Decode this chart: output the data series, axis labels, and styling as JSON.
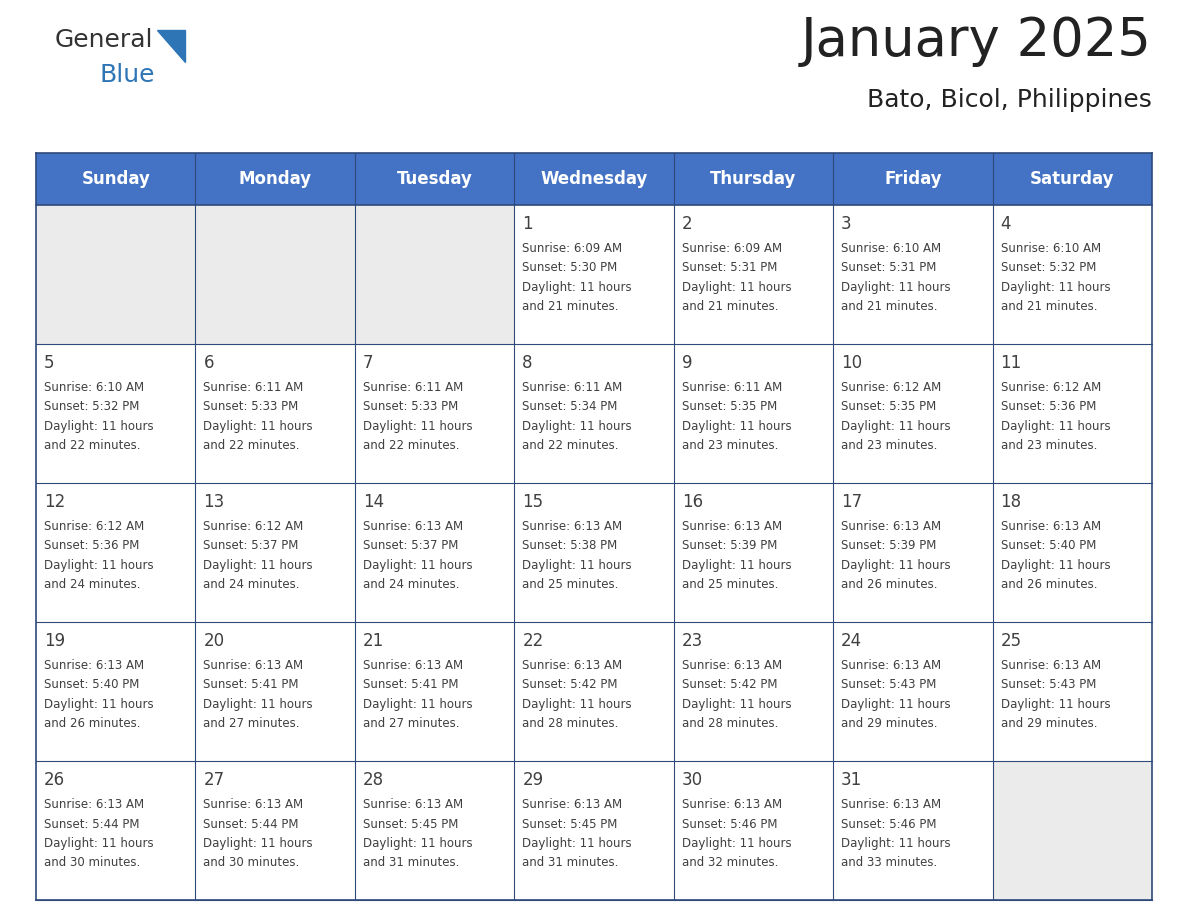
{
  "title": "January 2025",
  "subtitle": "Bato, Bicol, Philippines",
  "header_bg": "#4472C4",
  "header_text_color": "#FFFFFF",
  "day_names": [
    "Sunday",
    "Monday",
    "Tuesday",
    "Wednesday",
    "Thursday",
    "Friday",
    "Saturday"
  ],
  "weeks": [
    [
      {
        "day": "",
        "sunrise": "",
        "sunset": "",
        "daylight": ""
      },
      {
        "day": "",
        "sunrise": "",
        "sunset": "",
        "daylight": ""
      },
      {
        "day": "",
        "sunrise": "",
        "sunset": "",
        "daylight": ""
      },
      {
        "day": "1",
        "sunrise": "6:09 AM",
        "sunset": "5:30 PM",
        "daylight_line1": "Daylight: 11 hours",
        "daylight_line2": "and 21 minutes."
      },
      {
        "day": "2",
        "sunrise": "6:09 AM",
        "sunset": "5:31 PM",
        "daylight_line1": "Daylight: 11 hours",
        "daylight_line2": "and 21 minutes."
      },
      {
        "day": "3",
        "sunrise": "6:10 AM",
        "sunset": "5:31 PM",
        "daylight_line1": "Daylight: 11 hours",
        "daylight_line2": "and 21 minutes."
      },
      {
        "day": "4",
        "sunrise": "6:10 AM",
        "sunset": "5:32 PM",
        "daylight_line1": "Daylight: 11 hours",
        "daylight_line2": "and 21 minutes."
      }
    ],
    [
      {
        "day": "5",
        "sunrise": "6:10 AM",
        "sunset": "5:32 PM",
        "daylight_line1": "Daylight: 11 hours",
        "daylight_line2": "and 22 minutes."
      },
      {
        "day": "6",
        "sunrise": "6:11 AM",
        "sunset": "5:33 PM",
        "daylight_line1": "Daylight: 11 hours",
        "daylight_line2": "and 22 minutes."
      },
      {
        "day": "7",
        "sunrise": "6:11 AM",
        "sunset": "5:33 PM",
        "daylight_line1": "Daylight: 11 hours",
        "daylight_line2": "and 22 minutes."
      },
      {
        "day": "8",
        "sunrise": "6:11 AM",
        "sunset": "5:34 PM",
        "daylight_line1": "Daylight: 11 hours",
        "daylight_line2": "and 22 minutes."
      },
      {
        "day": "9",
        "sunrise": "6:11 AM",
        "sunset": "5:35 PM",
        "daylight_line1": "Daylight: 11 hours",
        "daylight_line2": "and 23 minutes."
      },
      {
        "day": "10",
        "sunrise": "6:12 AM",
        "sunset": "5:35 PM",
        "daylight_line1": "Daylight: 11 hours",
        "daylight_line2": "and 23 minutes."
      },
      {
        "day": "11",
        "sunrise": "6:12 AM",
        "sunset": "5:36 PM",
        "daylight_line1": "Daylight: 11 hours",
        "daylight_line2": "and 23 minutes."
      }
    ],
    [
      {
        "day": "12",
        "sunrise": "6:12 AM",
        "sunset": "5:36 PM",
        "daylight_line1": "Daylight: 11 hours",
        "daylight_line2": "and 24 minutes."
      },
      {
        "day": "13",
        "sunrise": "6:12 AM",
        "sunset": "5:37 PM",
        "daylight_line1": "Daylight: 11 hours",
        "daylight_line2": "and 24 minutes."
      },
      {
        "day": "14",
        "sunrise": "6:13 AM",
        "sunset": "5:37 PM",
        "daylight_line1": "Daylight: 11 hours",
        "daylight_line2": "and 24 minutes."
      },
      {
        "day": "15",
        "sunrise": "6:13 AM",
        "sunset": "5:38 PM",
        "daylight_line1": "Daylight: 11 hours",
        "daylight_line2": "and 25 minutes."
      },
      {
        "day": "16",
        "sunrise": "6:13 AM",
        "sunset": "5:39 PM",
        "daylight_line1": "Daylight: 11 hours",
        "daylight_line2": "and 25 minutes."
      },
      {
        "day": "17",
        "sunrise": "6:13 AM",
        "sunset": "5:39 PM",
        "daylight_line1": "Daylight: 11 hours",
        "daylight_line2": "and 26 minutes."
      },
      {
        "day": "18",
        "sunrise": "6:13 AM",
        "sunset": "5:40 PM",
        "daylight_line1": "Daylight: 11 hours",
        "daylight_line2": "and 26 minutes."
      }
    ],
    [
      {
        "day": "19",
        "sunrise": "6:13 AM",
        "sunset": "5:40 PM",
        "daylight_line1": "Daylight: 11 hours",
        "daylight_line2": "and 26 minutes."
      },
      {
        "day": "20",
        "sunrise": "6:13 AM",
        "sunset": "5:41 PM",
        "daylight_line1": "Daylight: 11 hours",
        "daylight_line2": "and 27 minutes."
      },
      {
        "day": "21",
        "sunrise": "6:13 AM",
        "sunset": "5:41 PM",
        "daylight_line1": "Daylight: 11 hours",
        "daylight_line2": "and 27 minutes."
      },
      {
        "day": "22",
        "sunrise": "6:13 AM",
        "sunset": "5:42 PM",
        "daylight_line1": "Daylight: 11 hours",
        "daylight_line2": "and 28 minutes."
      },
      {
        "day": "23",
        "sunrise": "6:13 AM",
        "sunset": "5:42 PM",
        "daylight_line1": "Daylight: 11 hours",
        "daylight_line2": "and 28 minutes."
      },
      {
        "day": "24",
        "sunrise": "6:13 AM",
        "sunset": "5:43 PM",
        "daylight_line1": "Daylight: 11 hours",
        "daylight_line2": "and 29 minutes."
      },
      {
        "day": "25",
        "sunrise": "6:13 AM",
        "sunset": "5:43 PM",
        "daylight_line1": "Daylight: 11 hours",
        "daylight_line2": "and 29 minutes."
      }
    ],
    [
      {
        "day": "26",
        "sunrise": "6:13 AM",
        "sunset": "5:44 PM",
        "daylight_line1": "Daylight: 11 hours",
        "daylight_line2": "and 30 minutes."
      },
      {
        "day": "27",
        "sunrise": "6:13 AM",
        "sunset": "5:44 PM",
        "daylight_line1": "Daylight: 11 hours",
        "daylight_line2": "and 30 minutes."
      },
      {
        "day": "28",
        "sunrise": "6:13 AM",
        "sunset": "5:45 PM",
        "daylight_line1": "Daylight: 11 hours",
        "daylight_line2": "and 31 minutes."
      },
      {
        "day": "29",
        "sunrise": "6:13 AM",
        "sunset": "5:45 PM",
        "daylight_line1": "Daylight: 11 hours",
        "daylight_line2": "and 31 minutes."
      },
      {
        "day": "30",
        "sunrise": "6:13 AM",
        "sunset": "5:46 PM",
        "daylight_line1": "Daylight: 11 hours",
        "daylight_line2": "and 32 minutes."
      },
      {
        "day": "31",
        "sunrise": "6:13 AM",
        "sunset": "5:46 PM",
        "daylight_line1": "Daylight: 11 hours",
        "daylight_line2": "and 33 minutes."
      },
      {
        "day": "",
        "sunrise": "",
        "sunset": "",
        "daylight_line1": "",
        "daylight_line2": ""
      }
    ]
  ],
  "cell_bg_white": "#FFFFFF",
  "cell_bg_gray": "#EBEBEB",
  "header_bg_color": "#4472C4",
  "border_color": "#2E4A7A",
  "text_color": "#404040",
  "logo_general_color": "#333333",
  "logo_blue_color": "#2E75B6",
  "logo_triangle_color": "#2E75B6",
  "title_fontsize": 38,
  "subtitle_fontsize": 18,
  "header_fontsize": 12,
  "day_num_fontsize": 12,
  "cell_text_fontsize": 8.5
}
